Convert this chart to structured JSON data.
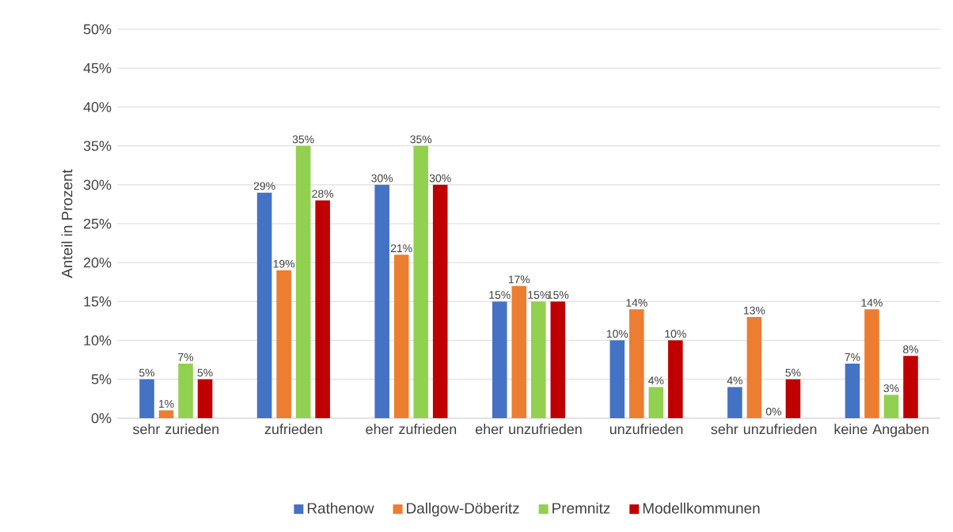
{
  "chart_data": {
    "type": "bar",
    "ylabel": "Anteil in Prozent",
    "categories": [
      "sehr zurieden",
      "zufrieden",
      "eher zufrieden",
      "eher unzufrieden",
      "unzufrieden",
      "sehr unzufrieden",
      "keine Angaben"
    ],
    "series": [
      {
        "name": "Rathenow",
        "color": "#4472c4",
        "values": [
          5,
          29,
          30,
          15,
          10,
          4,
          7
        ],
        "value_labels": [
          "5%",
          "29%",
          "30%",
          "15%",
          "10%",
          "4%",
          "7%"
        ]
      },
      {
        "name": "Dallgow-Döberitz",
        "color": "#ed7d31",
        "values": [
          1,
          19,
          21,
          17,
          14,
          13,
          14
        ],
        "value_labels": [
          "1%",
          "19%",
          "21%",
          "17%",
          "14%",
          "13%",
          "14%"
        ]
      },
      {
        "name": "Premnitz",
        "color": "#92d050",
        "values": [
          7,
          35,
          35,
          15,
          4,
          0,
          3
        ],
        "value_labels": [
          "7%",
          "35%",
          "35%",
          "15%",
          "4%",
          "0%",
          "3%"
        ]
      },
      {
        "name": "Modellkommunen",
        "color": "#c00000",
        "values": [
          5,
          28,
          30,
          15,
          10,
          5,
          8
        ],
        "value_labels": [
          "5%",
          "28%",
          "30%",
          "15%",
          "10%",
          "5%",
          "8%"
        ]
      }
    ],
    "ylim": [
      0,
      50
    ],
    "yticks": [
      {
        "value": 0,
        "label": "0%"
      },
      {
        "value": 5,
        "label": "5%"
      },
      {
        "value": 10,
        "label": "10%"
      },
      {
        "value": 15,
        "label": "15%"
      },
      {
        "value": 20,
        "label": "20%"
      },
      {
        "value": 25,
        "label": "25%"
      },
      {
        "value": 30,
        "label": "30%"
      },
      {
        "value": 35,
        "label": "35%"
      },
      {
        "value": 40,
        "label": "40%"
      },
      {
        "value": 45,
        "label": "45%"
      },
      {
        "value": 50,
        "label": "50%"
      }
    ],
    "grid": "y",
    "legend": "bottom"
  }
}
